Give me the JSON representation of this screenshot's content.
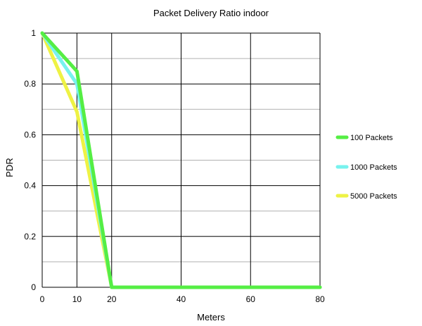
{
  "chart_data": {
    "type": "line",
    "title": "Packet Delivery Ratio indoor",
    "xlabel": "Meters",
    "ylabel": "PDR",
    "xlim": [
      0,
      80
    ],
    "ylim": [
      0,
      1
    ],
    "x_ticks": [
      0,
      10,
      20,
      40,
      60,
      80
    ],
    "x_tick_labels": [
      "0",
      "10",
      "20",
      "40",
      "60",
      "80"
    ],
    "y_ticks": [
      0,
      0.2,
      0.4,
      0.6,
      0.8,
      1
    ],
    "y_tick_labels": [
      "0",
      "0.2",
      "0.4",
      "0.6",
      "0.8",
      "1"
    ],
    "x_scale_note": "categorical-like spacing",
    "grid": true,
    "legend_position": "right",
    "series": [
      {
        "name": "100 Packets",
        "color": "#55ee44",
        "x": [
          0,
          10,
          20,
          40,
          60,
          80
        ],
        "y": [
          1,
          0.85,
          0,
          0,
          0,
          0
        ]
      },
      {
        "name": "1000 Packets",
        "color": "#77f2ee",
        "x": [
          0,
          10,
          20,
          40,
          60,
          80
        ],
        "y": [
          1,
          0.8,
          0,
          0,
          0,
          0
        ]
      },
      {
        "name": "5000 Packets",
        "color": "#eef244",
        "x": [
          0,
          10,
          20,
          40,
          60,
          80
        ],
        "y": [
          1,
          0.69,
          0,
          0,
          0,
          0
        ]
      }
    ]
  }
}
